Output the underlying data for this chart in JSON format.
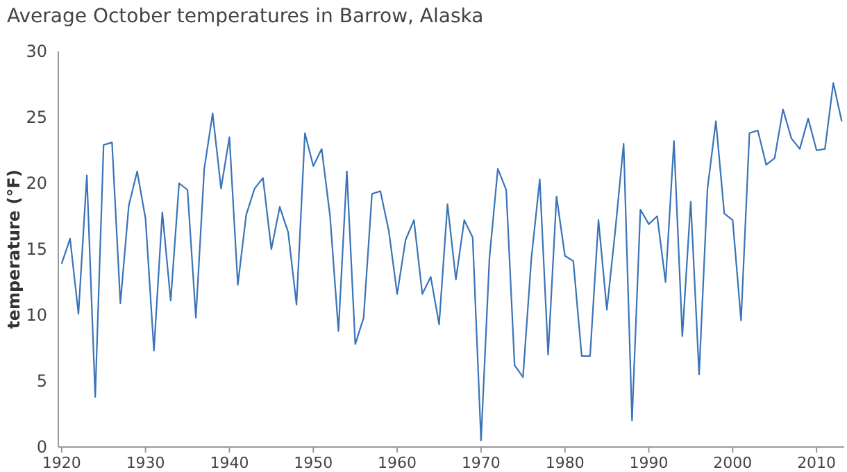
{
  "chart_data": {
    "type": "line",
    "title": "Average October temperatures in Barrow, Alaska",
    "ylabel": "temperature (°F)",
    "x": [
      1920,
      1921,
      1922,
      1923,
      1924,
      1925,
      1926,
      1927,
      1928,
      1929,
      1930,
      1931,
      1932,
      1933,
      1934,
      1935,
      1936,
      1937,
      1938,
      1939,
      1940,
      1941,
      1942,
      1943,
      1944,
      1945,
      1946,
      1947,
      1948,
      1949,
      1950,
      1951,
      1952,
      1953,
      1954,
      1955,
      1956,
      1957,
      1958,
      1959,
      1960,
      1961,
      1962,
      1963,
      1964,
      1965,
      1966,
      1967,
      1968,
      1969,
      1970,
      1971,
      1972,
      1973,
      1974,
      1975,
      1976,
      1977,
      1978,
      1979,
      1980,
      1981,
      1982,
      1983,
      1984,
      1985,
      1986,
      1987,
      1988,
      1989,
      1990,
      1991,
      1992,
      1993,
      1994,
      1995,
      1996,
      1997,
      1998,
      1999,
      2000,
      2001,
      2002,
      2003,
      2004,
      2005,
      2006,
      2007,
      2008,
      2009,
      2010,
      2011,
      2012,
      2013
    ],
    "series": [
      {
        "color": "#3a73b8",
        "values": [
          13.9,
          15.8,
          10.1,
          20.6,
          3.8,
          22.9,
          23.1,
          10.9,
          18.3,
          20.9,
          17.3,
          7.3,
          17.8,
          11.1,
          20.0,
          19.5,
          9.8,
          21.1,
          25.3,
          19.6,
          23.5,
          12.3,
          17.6,
          19.6,
          20.4,
          15.0,
          18.2,
          16.3,
          10.8,
          23.8,
          21.3,
          22.6,
          17.5,
          8.8,
          20.9,
          7.8,
          9.8,
          19.2,
          19.4,
          16.4,
          11.6,
          15.7,
          17.2,
          11.6,
          12.9,
          9.3,
          18.4,
          12.7,
          17.2,
          15.9,
          0.5,
          14.3,
          21.1,
          19.5,
          6.2,
          5.3,
          14.3,
          20.3,
          7.0,
          19.0,
          14.5,
          14.1,
          6.9,
          6.9,
          17.2,
          10.4,
          16.4,
          23.0,
          2.0,
          18.0,
          16.9,
          17.5,
          12.5,
          23.2,
          8.4,
          18.6,
          5.5,
          19.6,
          24.7,
          17.7,
          17.2,
          9.6,
          23.8,
          24.0,
          21.4,
          21.9,
          25.6,
          23.4,
          22.6,
          24.9,
          22.5,
          22.6,
          27.6,
          24.7
        ]
      }
    ],
    "xlim": [
      1919.6,
      2013.3
    ],
    "xticks": [
      1920,
      1930,
      1940,
      1950,
      1960,
      1970,
      1980,
      1990,
      2000,
      2010
    ],
    "ylim": [
      0,
      30
    ],
    "yticks": [
      0,
      5,
      10,
      15,
      20,
      25,
      30
    ],
    "line_style": "solid",
    "marker": "none"
  }
}
